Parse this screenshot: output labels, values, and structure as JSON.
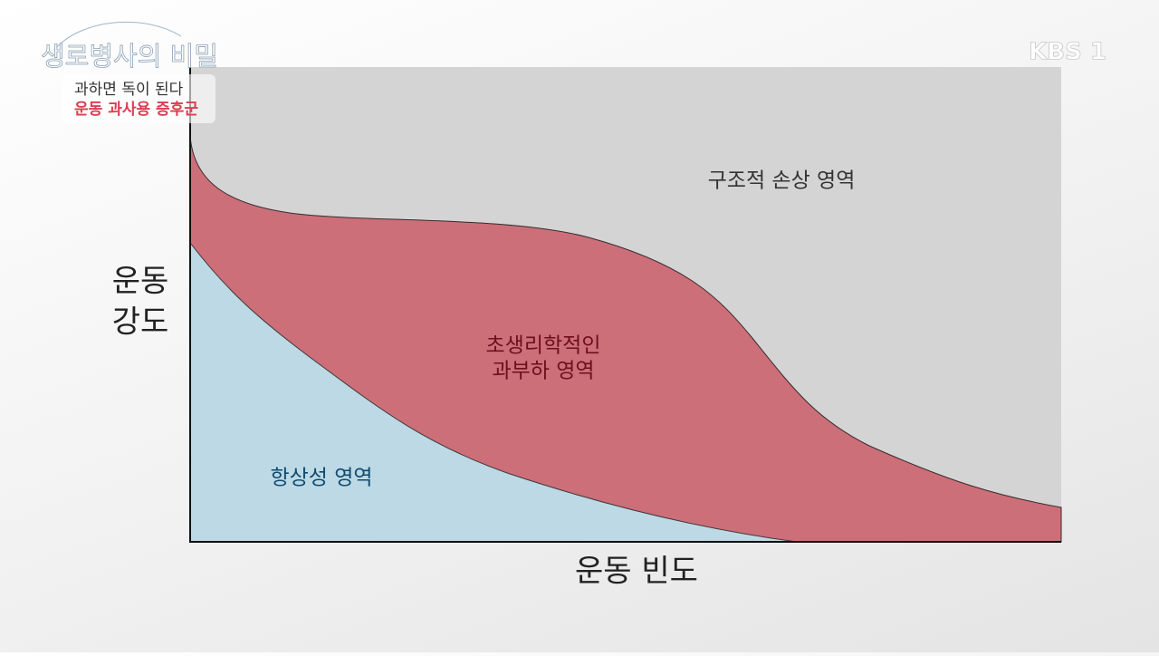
{
  "broadcast": {
    "program_logo": "생로병사의 비밀",
    "channel_logo": "KBS 1",
    "caption": [
      "과하면 독이 된다",
      "운동 과사용 증후군"
    ]
  },
  "diagram": {
    "y_axis_label": [
      "운동",
      "강도"
    ],
    "x_axis_label": "운동 빈도",
    "regions": [
      {
        "label": [
          "구조적 손상 영역"
        ]
      },
      {
        "label": [
          "초생리학적인",
          "과부하 영역"
        ]
      },
      {
        "label": [
          "항상성 영역"
        ]
      }
    ]
  }
}
